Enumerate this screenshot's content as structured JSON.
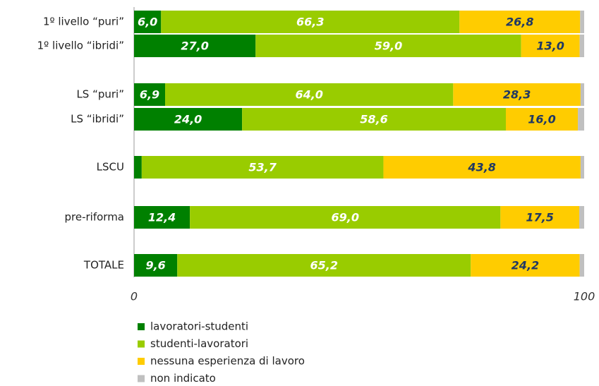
{
  "chart_data": {
    "type": "stacked-barh",
    "categories": [
      "1º livello “puri”",
      "1º livello “ibridi”",
      "LS “puri”",
      "LS “ibridi”",
      "LSCU",
      "pre-riforma",
      "TOTALE"
    ],
    "series": [
      {
        "name": "lavoratori-studenti",
        "color": "#008000",
        "values": [
          6.0,
          27.0,
          6.9,
          24.0,
          1.7,
          12.4,
          9.6
        ],
        "value_labels": [
          "6,0",
          "27,0",
          "6,9",
          "24,0",
          null,
          "12,4",
          "9,6"
        ]
      },
      {
        "name": "studenti-lavoratori",
        "color": "#99cc00",
        "values": [
          66.3,
          59.0,
          64.0,
          58.6,
          53.7,
          69.0,
          65.2
        ],
        "value_labels": [
          "66,3",
          "59,0",
          "64,0",
          "58,6",
          "53,7",
          "69,0",
          "65,2"
        ]
      },
      {
        "name": "nessuna esperienza di lavoro",
        "color": "#ffcc00",
        "values": [
          26.8,
          13.0,
          28.3,
          16.0,
          43.8,
          17.5,
          24.2
        ],
        "value_labels": [
          "26,8",
          "13,0",
          "28,3",
          "16,0",
          "43,8",
          "17,5",
          "24,2"
        ]
      },
      {
        "name": "non indicato",
        "color": "#c0c0c0",
        "values": [
          0.9,
          1.0,
          0.8,
          1.4,
          0.8,
          1.1,
          1.0
        ]
      }
    ],
    "xlim": [
      0,
      100
    ],
    "xticks": [
      0,
      100
    ]
  }
}
